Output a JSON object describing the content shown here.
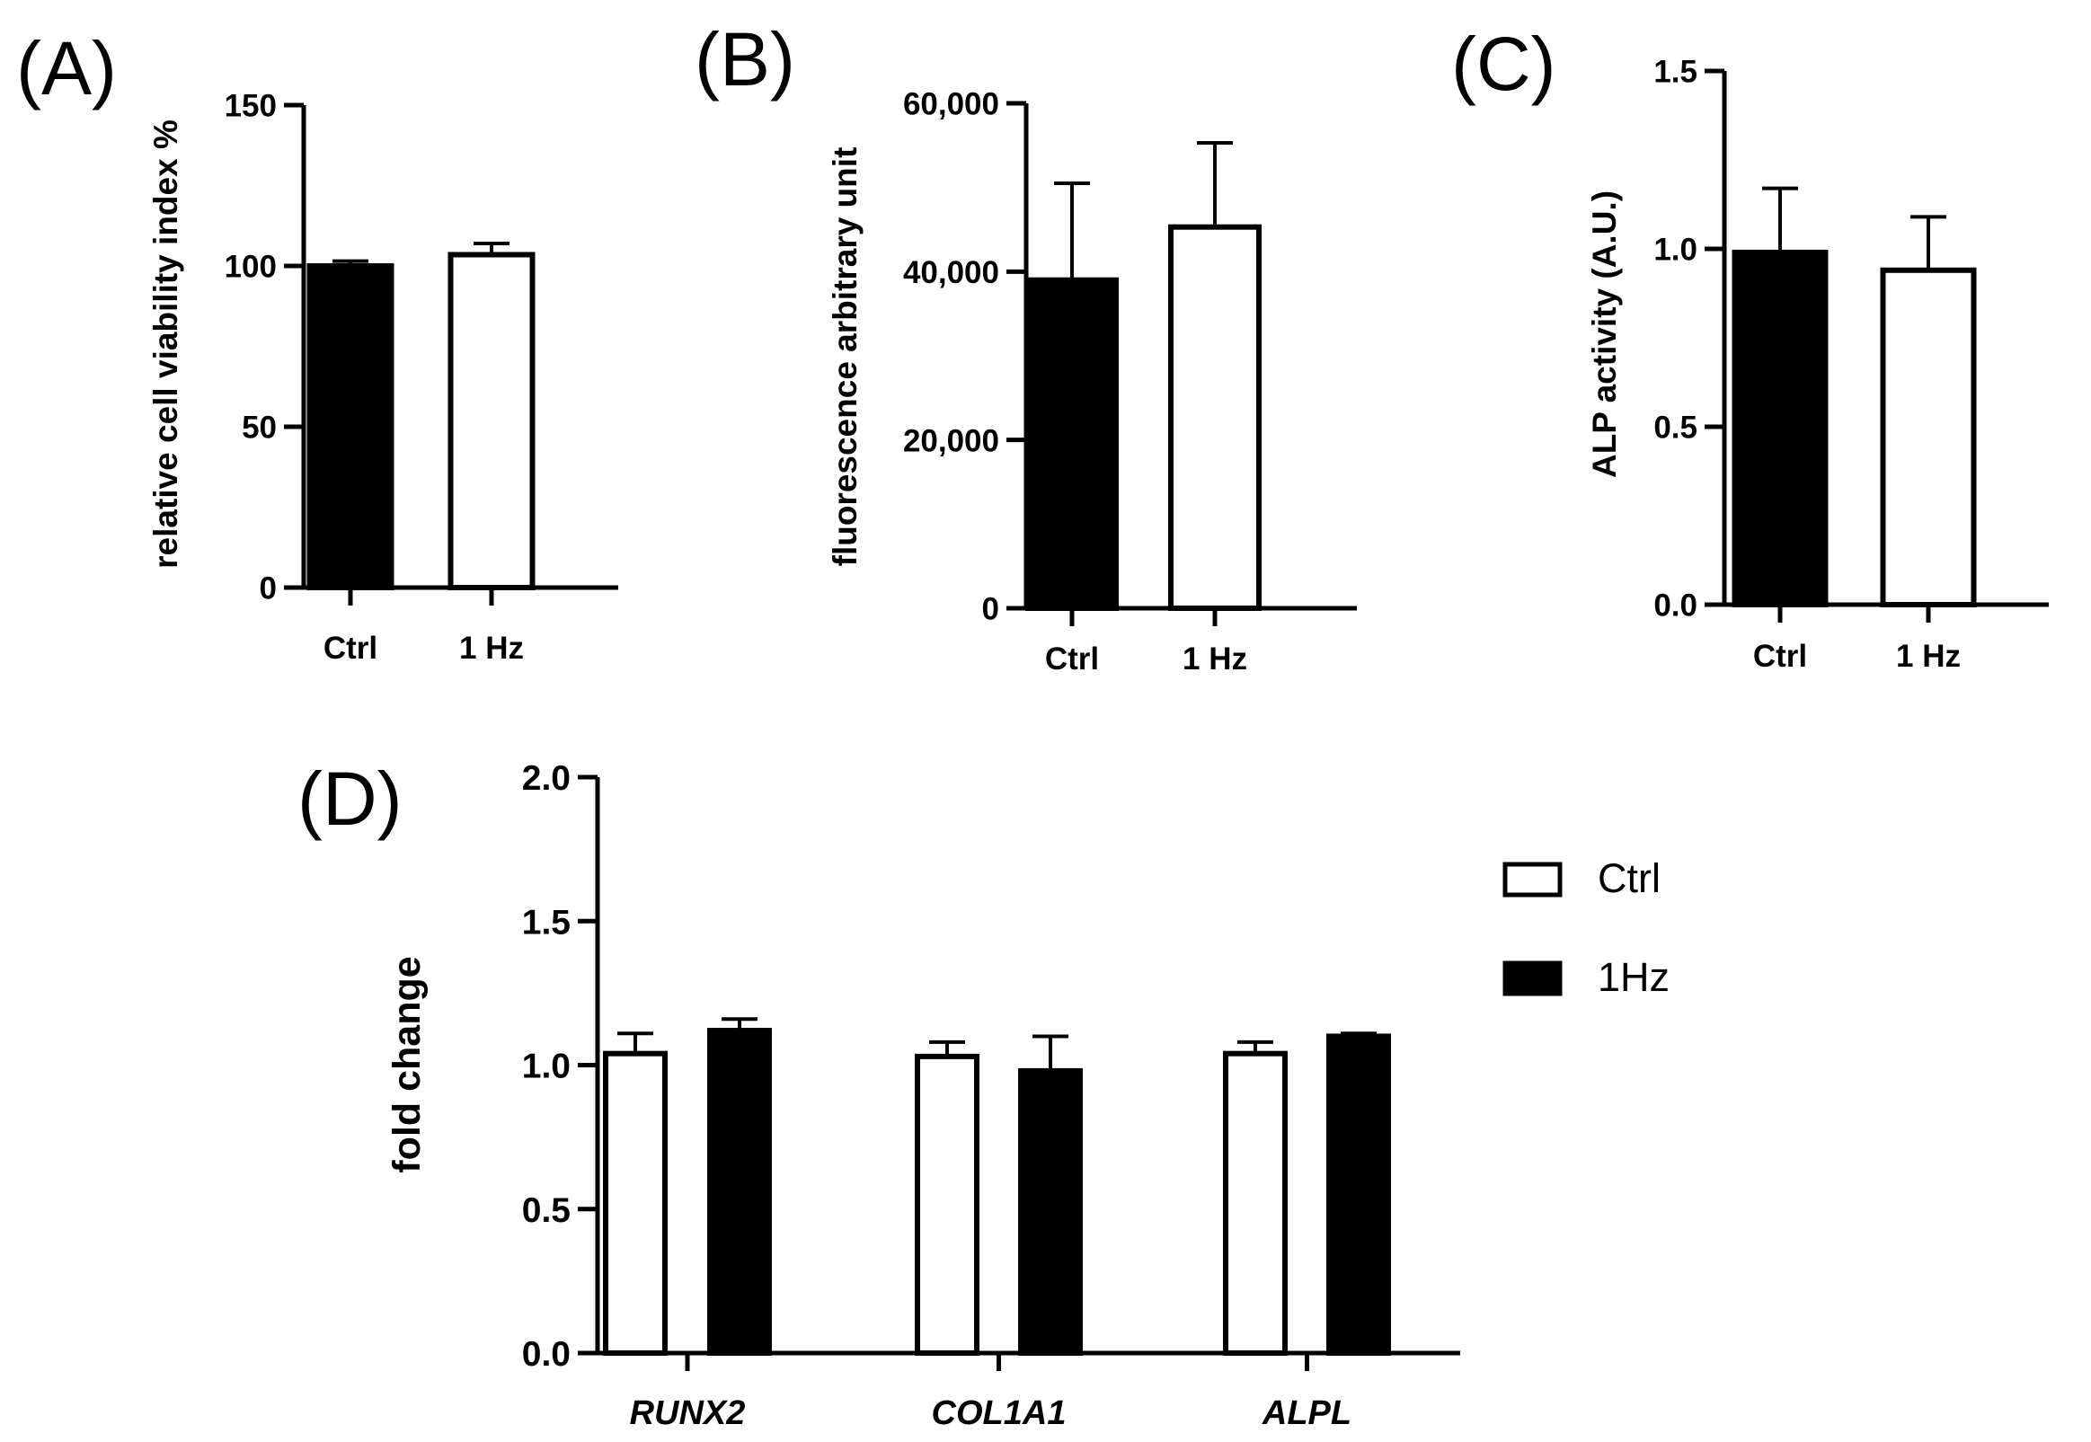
{
  "chart_data": [
    {
      "panel": "(A)",
      "type": "bar",
      "title": "",
      "xlabel": "",
      "ylabel": "relative cell viability index %",
      "ylim": [
        0,
        150
      ],
      "yticks": [
        0,
        50,
        100,
        150
      ],
      "ytick_labels": [
        "0",
        "50",
        "100",
        "150"
      ],
      "categories": [
        "Ctrl",
        "1 Hz"
      ],
      "values": [
        100,
        103.5
      ],
      "errors": [
        1.5,
        3.5
      ],
      "fills": [
        "#000000",
        "#ffffff"
      ]
    },
    {
      "panel": "(B)",
      "type": "bar",
      "title": "",
      "xlabel": "",
      "ylabel": "fluorescence arbitrary unit",
      "ylim": [
        0,
        60000
      ],
      "yticks": [
        0,
        20000,
        40000,
        60000
      ],
      "ytick_labels": [
        "0",
        "20,000",
        "40,000",
        "60,000"
      ],
      "categories": [
        "Ctrl",
        "1 Hz"
      ],
      "values": [
        39000,
        45300
      ],
      "errors": [
        11500,
        10000
      ],
      "fills": [
        "#000000",
        "#ffffff"
      ]
    },
    {
      "panel": "(C)",
      "type": "bar",
      "title": "",
      "xlabel": "",
      "ylabel": "ALP activity (A.U.)",
      "ylim": [
        0,
        1.5
      ],
      "yticks": [
        0,
        0.5,
        1.0,
        1.5
      ],
      "ytick_labels": [
        "0.0",
        "0.5",
        "1.0",
        "1.5"
      ],
      "categories": [
        "Ctrl",
        "1 Hz"
      ],
      "values": [
        0.99,
        0.94
      ],
      "errors": [
        0.18,
        0.15
      ],
      "fills": [
        "#000000",
        "#ffffff"
      ]
    },
    {
      "panel": "(D)",
      "type": "bar",
      "title": "",
      "xlabel": "",
      "ylabel": "fold change",
      "ylim": [
        0,
        2.0
      ],
      "yticks": [
        0,
        0.5,
        1.0,
        1.5,
        2.0
      ],
      "ytick_labels": [
        "0.0",
        "0.5",
        "1.0",
        "1.5",
        "2.0"
      ],
      "categories": [
        "RUNX2",
        "COL1A1",
        "ALPL"
      ],
      "legend": [
        {
          "label": "Ctrl",
          "fill": "#ffffff"
        },
        {
          "label": "1Hz",
          "fill": "#000000"
        }
      ],
      "series": [
        {
          "name": "Ctrl",
          "fill": "#ffffff",
          "values": [
            1.04,
            1.03,
            1.04
          ],
          "errors": [
            0.07,
            0.05,
            0.04
          ]
        },
        {
          "name": "1Hz",
          "fill": "#000000",
          "values": [
            1.12,
            0.98,
            1.1
          ],
          "errors": [
            0.04,
            0.12,
            0.01
          ]
        }
      ]
    }
  ]
}
